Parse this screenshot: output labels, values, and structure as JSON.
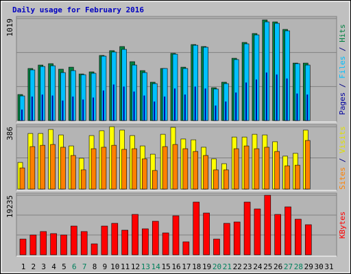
{
  "chart_data": [
    {
      "type": "bar",
      "title": "Daily usage for February 2016",
      "ylim": [
        0,
        1019
      ],
      "yticks": [
        1019
      ],
      "grid_divisions": 3,
      "legend_separator": " / ",
      "series": [
        {
          "name": "Hits",
          "color": "#008040",
          "values": [
            260,
            520,
            554,
            568,
            513,
            533,
            465,
            486,
            650,
            698,
            739,
            588,
            499,
            383,
            520,
            671,
            533,
            759,
            739,
            328,
            383,
            622,
            780,
            869,
            1005,
            985,
            910,
            574,
            574,
            null,
            null
          ]
        },
        {
          "name": "Files",
          "color": "#00c0ff",
          "values": [
            246,
            506,
            540,
            547,
            479,
            499,
            458,
            472,
            643,
            684,
            711,
            554,
            479,
            369,
            520,
            663,
            520,
            752,
            732,
            315,
            369,
            609,
            766,
            855,
            985,
            971,
            896,
            568,
            554,
            null,
            null
          ]
        },
        {
          "name": "Pages",
          "color": "#0000a0",
          "values": [
            110,
            240,
            260,
            250,
            200,
            240,
            210,
            230,
            300,
            360,
            340,
            290,
            250,
            190,
            240,
            320,
            260,
            340,
            320,
            150,
            190,
            280,
            380,
            410,
            480,
            460,
            420,
            270,
            260,
            null,
            null
          ]
        }
      ]
    },
    {
      "type": "bar",
      "ylim": [
        0,
        386
      ],
      "yticks": [
        386
      ],
      "grid_divisions": 2,
      "legend_separator": " / ",
      "series": [
        {
          "name": "Visits",
          "color": "#ffff00",
          "values": [
            165,
            344,
            344,
            369,
            335,
            267,
            191,
            331,
            361,
            386,
            365,
            331,
            267,
            216,
            339,
            382,
            310,
            305,
            259,
            187,
            157,
            322,
            322,
            339,
            335,
            293,
            204,
            221,
            365,
            null,
            null
          ]
        },
        {
          "name": "Sites",
          "color": "#ff8000",
          "values": [
            131,
            263,
            271,
            276,
            259,
            208,
            119,
            250,
            259,
            271,
            246,
            250,
            187,
            115,
            263,
            276,
            250,
            233,
            208,
            119,
            119,
            250,
            267,
            250,
            259,
            233,
            144,
            148,
            301,
            null,
            null
          ]
        }
      ]
    },
    {
      "type": "bar",
      "ylim": [
        0,
        19235
      ],
      "yticks": [
        19235
      ],
      "grid_divisions": 3,
      "categories": [
        "1",
        "2",
        "3",
        "4",
        "5",
        "6",
        "7",
        "8",
        "9",
        "10",
        "11",
        "12",
        "13",
        "14",
        "15",
        "16",
        "17",
        "18",
        "19",
        "20",
        "21",
        "22",
        "23",
        "24",
        "25",
        "26",
        "27",
        "28",
        "29",
        "30",
        "31"
      ],
      "category_colors": [
        "#000000",
        "#000000",
        "#000000",
        "#000000",
        "#000000",
        "#00805c",
        "#00805c",
        "#000000",
        "#000000",
        "#000000",
        "#000000",
        "#000000",
        "#00805c",
        "#00805c",
        "#000000",
        "#000000",
        "#000000",
        "#000000",
        "#000000",
        "#00805c",
        "#00805c",
        "#000000",
        "#000000",
        "#000000",
        "#000000",
        "#000000",
        "#00805c",
        "#00805c",
        "#000000",
        "#000000",
        "#000000"
      ],
      "series": [
        {
          "name": "KBytes",
          "color": "#ff0000",
          "values": [
            5085,
            6410,
            7520,
            6855,
            6410,
            9285,
            7520,
            3540,
            9285,
            10170,
            7960,
            13045,
            8400,
            10835,
            7075,
            12600,
            4200,
            17025,
            13490,
            5085,
            10170,
            10610,
            17025,
            14815,
            19235,
            13045,
            15480,
            11500,
            9725,
            null,
            null
          ]
        }
      ]
    }
  ]
}
